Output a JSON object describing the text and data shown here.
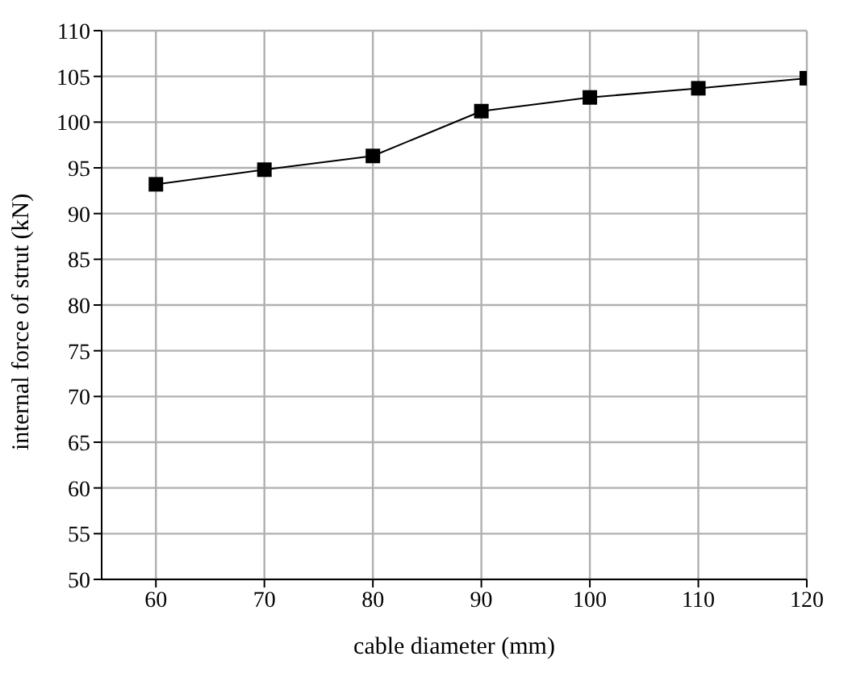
{
  "chart_data": {
    "type": "line",
    "xlabel": "cable diameter (mm)",
    "ylabel": "internal force of strut (kN)",
    "x": [
      60,
      70,
      80,
      90,
      100,
      110,
      120
    ],
    "series": [
      {
        "color": "#000000",
        "values": [
          93.2,
          94.8,
          96.3,
          101.2,
          102.7,
          103.7,
          104.8
        ]
      }
    ],
    "xlim": [
      55,
      120
    ],
    "xticks": [
      60,
      70,
      80,
      90,
      100,
      110,
      120
    ],
    "ylim": [
      50,
      110
    ],
    "yticks": [
      50,
      55,
      60,
      65,
      70,
      75,
      80,
      85,
      90,
      95,
      100,
      105,
      110
    ],
    "grid": true,
    "marker": "square",
    "line_style": "solid"
  }
}
